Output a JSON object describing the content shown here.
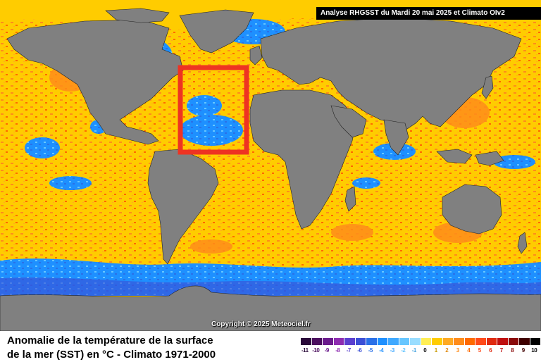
{
  "header": {
    "analysis_label": "Analyse RHGSST  du Mardi 20 mai 2025 et Climato OIv2"
  },
  "map": {
    "copyright": "Copyright © 2025 Meteociel.fr",
    "highlight_box_color": "#ee3322",
    "land_color": "#808080",
    "ocean_neutral_color": "#ffcc00"
  },
  "footer": {
    "title_line1": "Anomalie de la température de la surface",
    "title_line2": "de la mer (SST) en °C - Climato 1971-2000"
  },
  "legend": {
    "ticks": [
      "-11",
      "-10",
      "-9",
      "-8",
      "-7",
      "-6",
      "-5",
      "-4",
      "-3",
      "-2",
      "-1",
      "0",
      "1",
      "2",
      "3",
      "4",
      "5",
      "6",
      "7",
      "8",
      "9",
      "10"
    ],
    "colors": [
      "#2a0a3a",
      "#4b0f5e",
      "#6a1a8c",
      "#8e2cb0",
      "#5a3fcf",
      "#3b4fd6",
      "#2a70e8",
      "#1e90ff",
      "#3fa9ff",
      "#66c6ff",
      "#99ddff",
      "#ffee55",
      "#ffcc00",
      "#ffaa22",
      "#ff8c1a",
      "#ff6a00",
      "#ff4a1a",
      "#e02a10",
      "#c01010",
      "#8a0a0a",
      "#400000",
      "#000000"
    ],
    "tick_colors": [
      "#2a0a3a",
      "#4b0f5e",
      "#6a1a8c",
      "#8e2cb0",
      "#5a3fcf",
      "#3b4fd6",
      "#2a70e8",
      "#1e90ff",
      "#3fa9ff",
      "#66c6ff",
      "#4aa6e0",
      "#000000",
      "#c89a00",
      "#e08a10",
      "#ff8c1a",
      "#ff6a00",
      "#ff4a1a",
      "#e02a10",
      "#c01010",
      "#8a0a0a",
      "#400000",
      "#000000"
    ]
  }
}
